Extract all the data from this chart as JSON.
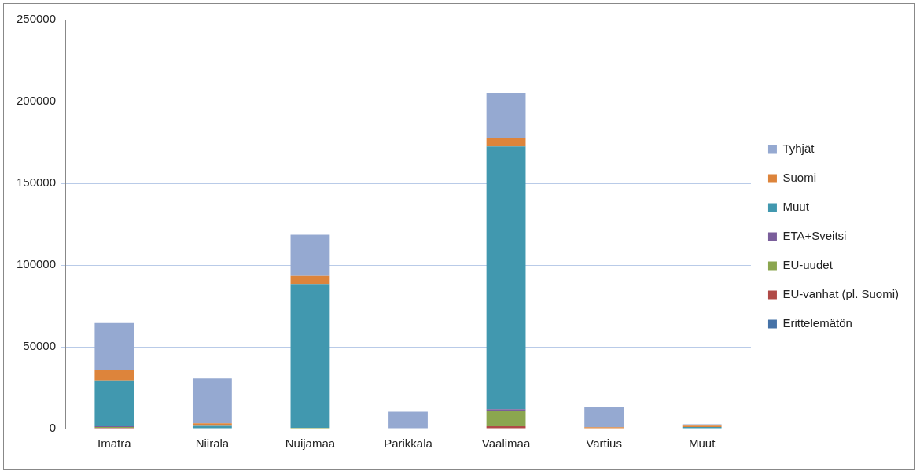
{
  "chart_data": {
    "type": "bar",
    "stacked": true,
    "categories": [
      "Imatra",
      "Niirala",
      "Nuijamaa",
      "Parikkala",
      "Vaalimaa",
      "Vartius",
      "Muut"
    ],
    "series": [
      {
        "name": "Erittelemätön",
        "color": "#4572a7",
        "values": [
          0,
          0,
          0,
          0,
          0,
          0,
          0
        ]
      },
      {
        "name": "EU-vanhat (pl. Suomi)",
        "color": "#b04a47",
        "values": [
          500,
          0,
          0,
          0,
          1500,
          0,
          0
        ]
      },
      {
        "name": "EU-uudet",
        "color": "#8ba64f",
        "values": [
          500,
          0,
          500,
          0,
          9500,
          0,
          0
        ]
      },
      {
        "name": "ETA+Sveitsi",
        "color": "#7a5e9b",
        "values": [
          500,
          0,
          0,
          0,
          900,
          0,
          0
        ]
      },
      {
        "name": "Muut",
        "color": "#4198af",
        "values": [
          28000,
          1700,
          87900,
          0,
          160600,
          0,
          1000
        ]
      },
      {
        "name": "Suomi",
        "color": "#dd843b",
        "values": [
          6300,
          1600,
          5000,
          0,
          5400,
          800,
          800
        ]
      },
      {
        "name": "Tyhjät",
        "color": "#95a9d1",
        "values": [
          28700,
          27400,
          25100,
          10300,
          27400,
          12600,
          800
        ]
      }
    ],
    "ylim": [
      0,
      250000
    ],
    "yticks": [
      0,
      50000,
      100000,
      150000,
      200000,
      250000
    ],
    "grid": "y",
    "legend": "right"
  }
}
